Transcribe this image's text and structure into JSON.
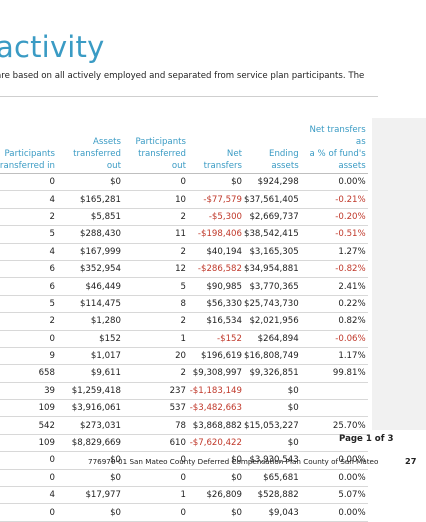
{
  "page": {
    "title": "activity",
    "subtitle": "are based on all actively employed and separated from service plan participants. The"
  },
  "table": {
    "headers": [
      [
        "Participants",
        "transferred in"
      ],
      [
        "Assets",
        "transferred out"
      ],
      [
        "Participants",
        "transferred out"
      ],
      [
        "Net transfers"
      ],
      [
        "Ending assets"
      ],
      [
        "Net transfers as",
        "a % of fund's",
        "assets"
      ]
    ],
    "rows": [
      [
        "0",
        "$0",
        "0",
        "$0",
        "$924,298",
        "0.00%"
      ],
      [
        "4",
        "$165,281",
        "10",
        "-$77,579",
        "$37,561,405",
        "-0.21%"
      ],
      [
        "2",
        "$5,851",
        "2",
        "-$5,300",
        "$2,669,737",
        "-0.20%"
      ],
      [
        "5",
        "$288,430",
        "11",
        "-$198,406",
        "$38,542,415",
        "-0.51%"
      ],
      [
        "4",
        "$167,999",
        "2",
        "$40,194",
        "$3,165,305",
        "1.27%"
      ],
      [
        "6",
        "$352,954",
        "12",
        "-$286,582",
        "$34,954,881",
        "-0.82%"
      ],
      [
        "6",
        "$46,449",
        "5",
        "$90,985",
        "$3,770,365",
        "2.41%"
      ],
      [
        "5",
        "$114,475",
        "8",
        "$56,330",
        "$25,743,730",
        "0.22%"
      ],
      [
        "2",
        "$1,280",
        "2",
        "$16,534",
        "$2,021,956",
        "0.82%"
      ],
      [
        "0",
        "$152",
        "1",
        "-$152",
        "$264,894",
        "-0.06%"
      ],
      [
        "9",
        "$1,017",
        "20",
        "$196,619",
        "$16,808,749",
        "1.17%"
      ],
      [
        "658",
        "$9,611",
        "2",
        "$9,308,997",
        "$9,326,851",
        "99.81%"
      ],
      [
        "39",
        "$1,259,418",
        "237",
        "-$1,183,149",
        "$0",
        ""
      ],
      [
        "109",
        "$3,916,061",
        "537",
        "-$3,482,663",
        "$0",
        ""
      ],
      [
        "542",
        "$273,031",
        "78",
        "$3,868,882",
        "$15,053,227",
        "25.70%"
      ],
      [
        "109",
        "$8,829,669",
        "610",
        "-$7,620,422",
        "$0",
        ""
      ],
      [
        "0",
        "$0",
        "0",
        "$0",
        "$3,930,543",
        "0.00%"
      ],
      [
        "0",
        "$0",
        "0",
        "$0",
        "$65,681",
        "0.00%"
      ],
      [
        "4",
        "$17,977",
        "1",
        "$26,809",
        "$528,882",
        "5.07%"
      ],
      [
        "0",
        "$0",
        "0",
        "$0",
        "$9,043",
        "0.00%"
      ]
    ]
  },
  "pagination": {
    "label": "Page 1 of 3"
  },
  "footer": {
    "text": "776970-01 San Mateo County Deferred Compensation Plan County of San Mateo",
    "page_number": "27"
  },
  "colors": {
    "accent": "#3a9bc4",
    "negative": "#c0392b"
  }
}
